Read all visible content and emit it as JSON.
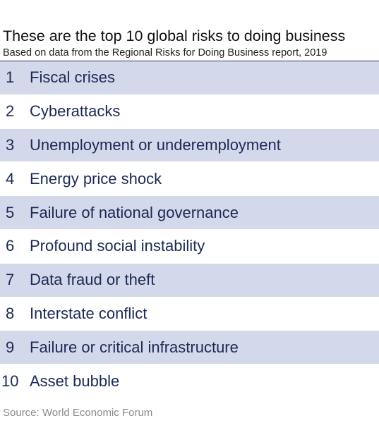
{
  "title": "These are the top 10 global risks to doing business",
  "subtitle": "Based on data from the Regional Risks for Doing Business report, 2019",
  "source": "Source: World Economic Forum",
  "colors": {
    "shaded_row": "#d3d9ea",
    "text": "#1b2a55",
    "rule": "#2b3a67"
  },
  "chart_data": {
    "type": "table",
    "columns": [
      "rank",
      "risk"
    ],
    "rows": [
      {
        "rank": "1",
        "risk": "Fiscal crises"
      },
      {
        "rank": "2",
        "risk": "Cyberattacks"
      },
      {
        "rank": "3",
        "risk": "Unemployment or underemployment"
      },
      {
        "rank": "4",
        "risk": "Energy price shock"
      },
      {
        "rank": "5",
        "risk": "Failure of national governance"
      },
      {
        "rank": "6",
        "risk": "Profound social instability"
      },
      {
        "rank": "7",
        "risk": "Data fraud or theft"
      },
      {
        "rank": "8",
        "risk": "Interstate conflict"
      },
      {
        "rank": "9",
        "risk": "Failure or critical infrastructure"
      },
      {
        "rank": "10",
        "risk": "Asset bubble"
      }
    ]
  }
}
